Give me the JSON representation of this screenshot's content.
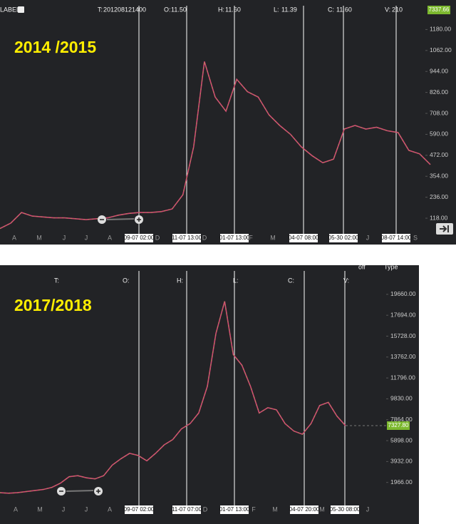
{
  "chart_data": [
    {
      "type": "line",
      "title": "2014 /2015",
      "label_text": "LABEL:",
      "header": [
        {
          "label": "T:",
          "value": "201208121400"
        },
        {
          "label": "O:",
          "value": "11.50"
        },
        {
          "label": "H:",
          "value": "11.60"
        },
        {
          "label": "L:",
          "value": "11.39"
        },
        {
          "label": "C:",
          "value": "11.60"
        },
        {
          "label": "V:",
          "value": "210"
        }
      ],
      "price_badge": "7337.66",
      "x_labels": [
        "A",
        "M",
        "J",
        "J",
        "A",
        "09-07 02:00",
        "D",
        "11-07 13:00",
        "D",
        "01-07 13:00",
        "F",
        "M",
        "04-07 08:00",
        "05-30 02:00",
        "J",
        "08-07 14:00",
        "S"
      ],
      "color": "#d04a72",
      "values": [
        60,
        90,
        150,
        130,
        125,
        120,
        120,
        115,
        110,
        115,
        120,
        135,
        145,
        150,
        150,
        155,
        170,
        250,
        520,
        1000,
        800,
        720,
        900,
        830,
        800,
        700,
        640,
        590,
        520,
        470,
        430,
        450,
        620,
        640,
        620,
        630,
        610,
        600,
        500,
        480,
        420
      ],
      "ylim": [
        42,
        1314
      ],
      "yticks": [
        {
          "value": 1180,
          "label": "1180.00"
        },
        {
          "value": 1062,
          "label": "1062.00"
        },
        {
          "value": 944,
          "label": "944.00"
        },
        {
          "value": 826,
          "label": "826.00"
        },
        {
          "value": 708,
          "label": "708.00"
        },
        {
          "value": 590,
          "label": "590.00"
        },
        {
          "value": 472,
          "label": "472.00"
        },
        {
          "value": 354,
          "label": "354.00"
        },
        {
          "value": 236,
          "label": "236.00"
        },
        {
          "value": 118,
          "label": "118.00"
        }
      ]
    },
    {
      "type": "line",
      "title": "2017/2018",
      "header": [
        {
          "label": "T:"
        },
        {
          "label": "O:"
        },
        {
          "label": "H:"
        },
        {
          "label": "L:"
        },
        {
          "label": "C:"
        },
        {
          "label": "V:"
        }
      ],
      "menus": [
        "off",
        "Type"
      ],
      "price_badge": "7327.80",
      "x_labels": [
        "A",
        "M",
        "J",
        "J",
        "A",
        "09-07 02:00",
        "11-07 07:00",
        "D",
        "01-07 13:00",
        "F",
        "M",
        "04-07 20:00",
        "M",
        "05-30 08:00",
        "J"
      ],
      "color": "#d04a72",
      "values": [
        1000,
        950,
        1000,
        1100,
        1200,
        1300,
        1500,
        1900,
        2500,
        2600,
        2400,
        2300,
        2600,
        3600,
        4200,
        4700,
        4500,
        4000,
        4700,
        5500,
        6000,
        7000,
        7500,
        8500,
        11000,
        16000,
        19000,
        14000,
        13000,
        11000,
        8500,
        9000,
        8800,
        7500,
        6800,
        6500,
        7500,
        9200,
        9500,
        8200,
        7300
      ],
      "ylim": [
        0,
        22000
      ],
      "yticks": [
        {
          "value": 19660,
          "label": "19660.00"
        },
        {
          "value": 17694,
          "label": "17694.00"
        },
        {
          "value": 15728,
          "label": "15728.00"
        },
        {
          "value": 13762,
          "label": "13762.00"
        },
        {
          "value": 11796,
          "label": "11796.00"
        },
        {
          "value": 9830,
          "label": "9830.00"
        },
        {
          "value": 7864,
          "label": "7864.00"
        },
        {
          "value": 5898,
          "label": "5898.00"
        },
        {
          "value": 3932,
          "label": "3932.00"
        },
        {
          "value": 1966,
          "label": "1966.00"
        }
      ]
    }
  ]
}
